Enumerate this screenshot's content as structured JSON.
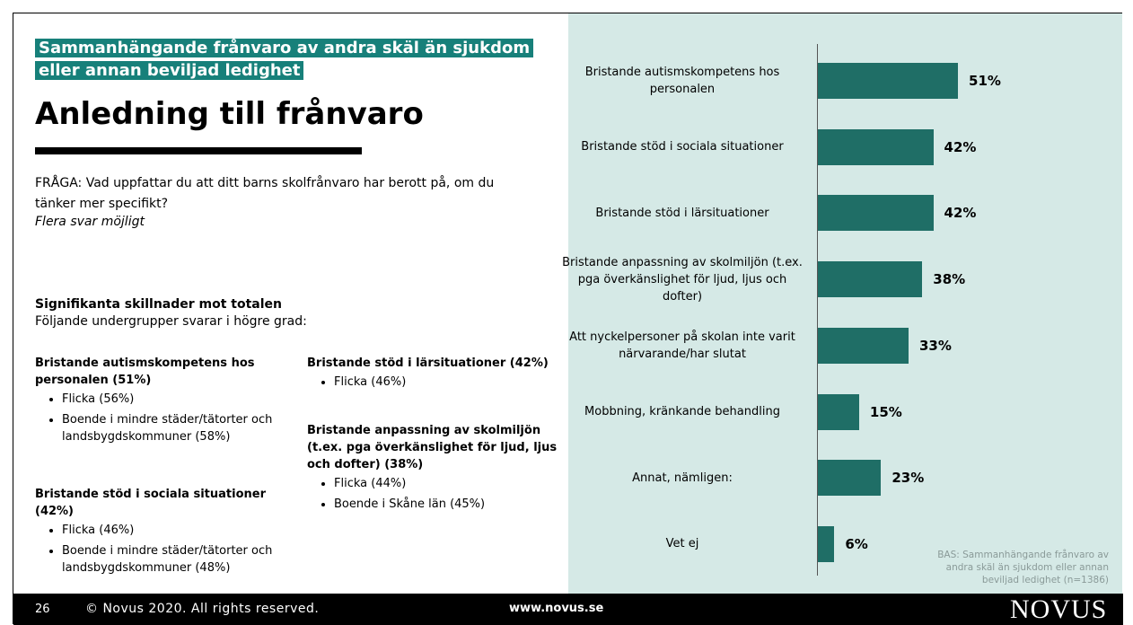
{
  "header": {
    "kicker": "Sammanhängande frånvaro av andra skäl än sjukdom eller annan beviljad ledighet",
    "title": "Anledning till frånvaro"
  },
  "question": {
    "text": "FRÅGA: Vad uppfattar du att ditt barns skolfrånvaro har berott på, om du tänker mer specifikt?",
    "note": "Flera svar möjligt"
  },
  "significance": {
    "title": "Signifikanta skillnader mot totalen",
    "intro": "Följande undergrupper svarar i högre grad:",
    "groups": [
      {
        "title": "Bristande autismskompetens hos personalen (51%)",
        "items": [
          "Flicka (56%)",
          "Boende i mindre städer/tätorter och landsbygdskommuner (58%)"
        ]
      },
      {
        "title": "Bristande stöd i sociala situationer (42%)",
        "items": [
          "Flicka (46%)",
          "Boende i mindre städer/tätorter och landsbygdskommuner (48%)"
        ]
      },
      {
        "title": "Bristande stöd i lärsituationer (42%)",
        "items": [
          "Flicka (46%)"
        ]
      },
      {
        "title": "Bristande anpassning av skolmiljön (t.ex. pga överkänslighet för ljud, ljus och dofter) (38%)",
        "items": [
          "Flicka (44%)",
          "Boende i Skåne län (45%)"
        ]
      }
    ]
  },
  "chart_data": {
    "type": "bar",
    "orientation": "horizontal",
    "categories": [
      "Bristande autismskompetens hos personalen",
      "Bristande stöd i sociala situationer",
      "Bristande stöd i lärsituationer",
      "Bristande anpassning av skolmiljön (t.ex. pga överkänslighet för ljud, ljus och dofter)",
      "Att nyckelpersoner på skolan inte varit närvarande/har slutat",
      "Mobbning, kränkande behandling",
      "Annat, nämligen:",
      "Vet ej"
    ],
    "values": [
      51,
      42,
      42,
      38,
      33,
      15,
      23,
      6
    ],
    "value_labels": [
      "51%",
      "42%",
      "42%",
      "38%",
      "33%",
      "15%",
      "23%",
      "6%"
    ],
    "color": "#1f6e66"
  },
  "base_note": "BAS: Sammanhängande frånvaro av andra skäl än sjukdom eller annan beviljad ledighet (n=1386)",
  "footer": {
    "page": "26",
    "copyright": "© Novus 2020. All rights reserved.",
    "url": "www.novus.se",
    "logo": "NOVUS"
  }
}
